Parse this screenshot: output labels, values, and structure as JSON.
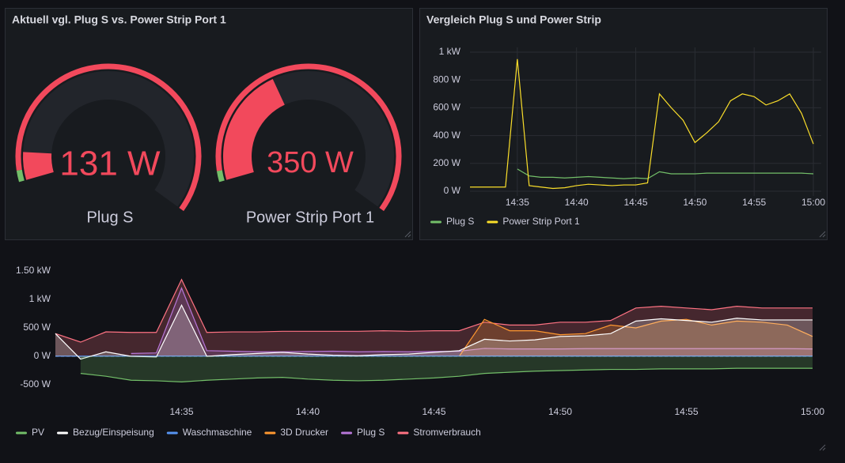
{
  "chart_data": [
    {
      "type": "gauge",
      "title": "Aktuell vgl. Plug S vs. Power Strip Port 1",
      "series": [
        {
          "name": "Plug S",
          "values": [
            131
          ],
          "value_labels": [
            "131 W"
          ],
          "min": 0,
          "max": 1600,
          "thresholds": [
            {
              "value": 0,
              "color": "#73bf69"
            },
            {
              "value": 50,
              "color": "#f2495c"
            }
          ]
        },
        {
          "name": "Power Strip Port 1",
          "values": [
            350
          ],
          "value_labels": [
            "350 W"
          ],
          "min": 0,
          "max": 1000,
          "thresholds": [
            {
              "value": 0,
              "color": "#73bf69"
            },
            {
              "value": 30,
              "color": "#f2495c"
            }
          ]
        }
      ]
    },
    {
      "type": "line",
      "title": "Vergleich Plug S und Power Strip",
      "x": [
        "14:31",
        "14:32",
        "14:33",
        "14:34",
        "14:35",
        "14:36",
        "14:37",
        "14:38",
        "14:39",
        "14:40",
        "14:41",
        "14:42",
        "14:43",
        "14:44",
        "14:45",
        "14:46",
        "14:47",
        "14:48",
        "14:49",
        "14:50",
        "14:51",
        "14:52",
        "14:53",
        "14:54",
        "14:55",
        "14:56",
        "14:57",
        "14:58",
        "14:59",
        "15:00"
      ],
      "xlim": [
        "14:31",
        "15:00"
      ],
      "xticks": [
        "14:35",
        "14:40",
        "14:45",
        "14:50",
        "14:55",
        "15:00"
      ],
      "ylim": [
        0,
        1000
      ],
      "yticks": [
        {
          "value": 0,
          "label": "0 W"
        },
        {
          "value": 200,
          "label": "200 W"
        },
        {
          "value": 400,
          "label": "400 W"
        },
        {
          "value": 600,
          "label": "600 W"
        },
        {
          "value": 800,
          "label": "800 W"
        },
        {
          "value": 1000,
          "label": "1 kW"
        }
      ],
      "grid": true,
      "legend": "bottom",
      "series": [
        {
          "name": "Plug S",
          "color": "#73bf69",
          "values": [
            null,
            null,
            null,
            null,
            160,
            110,
            100,
            100,
            95,
            100,
            105,
            100,
            95,
            90,
            95,
            90,
            140,
            125,
            125,
            125,
            130,
            130,
            130,
            130,
            130,
            130,
            130,
            130,
            130,
            125
          ]
        },
        {
          "name": "Power Strip Port 1",
          "color": "#fade2a",
          "values": [
            30,
            30,
            30,
            30,
            950,
            40,
            30,
            20,
            25,
            40,
            50,
            45,
            40,
            45,
            45,
            60,
            700,
            600,
            510,
            350,
            420,
            500,
            650,
            700,
            680,
            620,
            650,
            700,
            560,
            340
          ]
        }
      ]
    },
    {
      "type": "area",
      "x": [
        "14:30",
        "14:31",
        "14:32",
        "14:33",
        "14:34",
        "14:35",
        "14:36",
        "14:37",
        "14:38",
        "14:39",
        "14:40",
        "14:41",
        "14:42",
        "14:43",
        "14:44",
        "14:45",
        "14:46",
        "14:47",
        "14:48",
        "14:49",
        "14:50",
        "14:51",
        "14:52",
        "14:53",
        "14:54",
        "14:55",
        "14:56",
        "14:57",
        "14:58",
        "14:59",
        "15:00"
      ],
      "xlim": [
        "14:30",
        "15:00"
      ],
      "xticks": [
        "14:35",
        "14:40",
        "14:45",
        "14:50",
        "14:55",
        "15:00"
      ],
      "ylim": [
        -750,
        1500
      ],
      "yticks": [
        {
          "value": -500,
          "label": "-500 W"
        },
        {
          "value": 0,
          "label": "0 W"
        },
        {
          "value": 500,
          "label": "500 W"
        },
        {
          "value": 1000,
          "label": "1 kW"
        },
        {
          "value": 1500,
          "label": "1.50 kW"
        }
      ],
      "grid": false,
      "legend": "bottom",
      "fill_opacity": 0.22,
      "series": [
        {
          "name": "PV",
          "color": "#73bf69",
          "values": [
            null,
            -300,
            -350,
            -420,
            -430,
            -450,
            -420,
            -400,
            -380,
            -370,
            -400,
            -420,
            -430,
            -420,
            -400,
            -380,
            -350,
            -300,
            -280,
            -260,
            -250,
            -240,
            -230,
            -230,
            -220,
            -220,
            -220,
            -210,
            -210,
            -210,
            -210
          ]
        },
        {
          "name": "Bezug/Einspeisung",
          "color": "#ffffff",
          "values": [
            400,
            -50,
            80,
            0,
            -10,
            900,
            0,
            30,
            50,
            70,
            40,
            20,
            10,
            30,
            40,
            70,
            100,
            300,
            270,
            290,
            350,
            360,
            400,
            620,
            660,
            630,
            600,
            670,
            640,
            640,
            640
          ]
        },
        {
          "name": "Waschmaschine",
          "color": "#5794f2",
          "values": [
            3,
            3,
            3,
            3,
            3,
            3,
            3,
            3,
            3,
            3,
            3,
            3,
            3,
            3,
            3,
            3,
            3,
            3,
            3,
            3,
            3,
            3,
            3,
            3,
            3,
            3,
            3,
            3,
            3,
            3,
            3
          ]
        },
        {
          "name": "3D Drucker",
          "color": "#ff9830",
          "values": [
            null,
            null,
            null,
            null,
            null,
            null,
            null,
            null,
            null,
            null,
            null,
            null,
            null,
            null,
            null,
            null,
            0,
            650,
            450,
            450,
            380,
            400,
            550,
            500,
            620,
            650,
            550,
            620,
            600,
            550,
            350
          ]
        },
        {
          "name": "Plug S",
          "color": "#b877d9",
          "values": [
            null,
            null,
            null,
            50,
            60,
            1200,
            100,
            90,
            80,
            80,
            85,
            90,
            80,
            85,
            80,
            85,
            90,
            140,
            130,
            130,
            130,
            135,
            135,
            135,
            135,
            135,
            135,
            135,
            135,
            135,
            130
          ]
        },
        {
          "name": "Stromverbrauch",
          "color": "#ff7383",
          "values": [
            400,
            250,
            430,
            420,
            420,
            1350,
            420,
            430,
            430,
            440,
            440,
            440,
            440,
            450,
            440,
            450,
            450,
            600,
            550,
            550,
            600,
            600,
            630,
            850,
            880,
            850,
            820,
            880,
            850,
            850,
            850
          ]
        }
      ]
    }
  ]
}
